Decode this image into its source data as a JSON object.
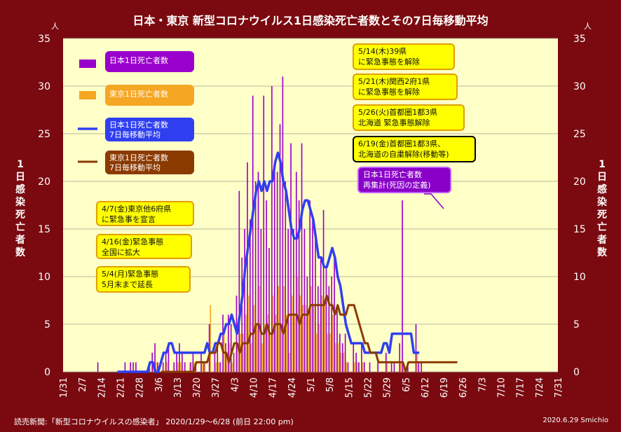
{
  "title": "日本・東京 新型コロナウイルス1日感染死亡者数とその7日毎移動平均",
  "footer": {
    "source": "読売新聞:「新型コロナウイルスの感染者」 2020/1/29〜6/28 (前日 22:00 pm)",
    "credit": "2020.6.29  Smichio"
  },
  "axis": {
    "y_unit": "人",
    "y_label": "1日感染死亡者数",
    "y_ticks": [
      0,
      5,
      10,
      15,
      20,
      25,
      30,
      35
    ],
    "ylim": [
      0,
      35
    ],
    "x_ticks": [
      "1/31",
      "2/7",
      "2/14",
      "2/21",
      "2/28",
      "3/6",
      "3/13",
      "3/20",
      "3/27",
      "4/3",
      "4/10",
      "4/17",
      "4/24",
      "5/1",
      "5/8",
      "5/15",
      "5/22",
      "5/29",
      "6/5",
      "6/12",
      "6/19",
      "6/26",
      "7/3",
      "7/10",
      "7/17",
      "7/24",
      "7/31"
    ]
  },
  "legend": [
    {
      "label": "日本1日死亡者数",
      "color": "#9a00cc"
    },
    {
      "label": "東京1日死亡者数",
      "color": "#f5a623"
    },
    {
      "label": "日本1日死亡者数\n7日毎移動平均",
      "color": "#2f3ff0"
    },
    {
      "label": "東京1日死亡者数\n7日毎移動平均",
      "color": "#8b3a00"
    }
  ],
  "annotations": [
    {
      "id": "ann-4-7",
      "text": "4/7(金)東京他6府県\nに緊急事を宣言"
    },
    {
      "id": "ann-4-16",
      "text": "4/16(金)緊急事態\n全国に拡大"
    },
    {
      "id": "ann-5-4",
      "text": "5/4(月)緊急事態\n5月末まで延長"
    },
    {
      "id": "ann-5-14",
      "text": "5/14(木)39県\nに緊急事態を解除"
    },
    {
      "id": "ann-5-21",
      "text": "5/21(木)関西2府1県\nに緊急事態を解除"
    },
    {
      "id": "ann-5-26",
      "text": "5/26(火)首都圏1都3県\n北海道 緊急事態解除"
    },
    {
      "id": "ann-6-19",
      "text": "6/19(金)首都圏1都3県、\n北海道の自粛解除(移動等)"
    },
    {
      "id": "ann-recount",
      "text": "日本1日死亡者数\n再集計(死因の定義)"
    }
  ],
  "chart_data": {
    "type": "bar",
    "x_start": "2020-01-31",
    "x_end": "2020-07-31",
    "ylim": [
      0,
      35
    ],
    "grid": true,
    "series": [
      {
        "name": "日本1日死亡者数",
        "type": "bar",
        "color": "#9a00cc",
        "start": "2020-02-13",
        "values": [
          1,
          0,
          0,
          0,
          0,
          0,
          0,
          0,
          0,
          0,
          1,
          0,
          1,
          1,
          1,
          0,
          0,
          0,
          0,
          1,
          2,
          3,
          1,
          0,
          1,
          2,
          3,
          0,
          1,
          2,
          3,
          2,
          1,
          0,
          1,
          2,
          1,
          0,
          2,
          1,
          0,
          5,
          0,
          2,
          3,
          1,
          6,
          3,
          6,
          5,
          2,
          8,
          19,
          12,
          15,
          22,
          16,
          29,
          20,
          21,
          15,
          29,
          18,
          13,
          30,
          22,
          21,
          26,
          31,
          20,
          15,
          24,
          15,
          21,
          18,
          24,
          15,
          10,
          18,
          16,
          14,
          9,
          12,
          17,
          11,
          9,
          10,
          12,
          7,
          4,
          3,
          4,
          1,
          0,
          3,
          2,
          1,
          3,
          1,
          0,
          1,
          0,
          0,
          1,
          0,
          0,
          2,
          0,
          1,
          1,
          0,
          3,
          18,
          0,
          1,
          0,
          0,
          5,
          1,
          1
        ]
      },
      {
        "name": "東京1日死亡者数",
        "type": "bar",
        "color": "#f5a623",
        "start": "2020-02-13",
        "values": [
          0,
          0,
          0,
          0,
          0,
          0,
          0,
          0,
          0,
          0,
          0,
          0,
          0,
          0,
          0,
          0,
          0,
          0,
          0,
          0,
          1,
          1,
          0,
          0,
          0,
          1,
          0,
          0,
          0,
          1,
          1,
          0,
          0,
          0,
          1,
          1,
          0,
          0,
          1,
          1,
          0,
          7,
          0,
          1,
          1,
          0,
          4,
          2,
          3,
          1,
          0,
          3,
          4,
          4,
          6,
          8,
          3,
          7,
          5,
          9,
          3,
          5,
          6,
          4,
          8,
          6,
          9,
          5,
          9,
          6,
          2,
          8,
          6,
          10,
          8,
          7,
          7,
          6,
          9,
          7,
          4,
          5,
          8,
          7,
          4,
          4,
          6,
          3,
          3,
          2,
          2,
          1,
          0,
          0,
          1,
          1,
          0,
          1,
          0,
          0,
          0,
          0,
          0,
          0,
          0,
          0,
          1,
          0,
          0,
          0,
          0,
          1,
          1,
          0,
          0,
          0,
          0,
          2,
          0,
          0
        ]
      },
      {
        "name": "日本1日死亡者数\n7日毎移動平均",
        "type": "line",
        "color": "#2f3ff0",
        "start": "2020-02-20",
        "values": [
          0,
          0,
          0,
          0,
          0,
          0,
          0,
          0,
          0,
          0,
          0,
          0,
          1,
          1,
          0,
          0,
          1,
          2,
          2,
          3,
          3,
          2,
          2,
          2,
          2,
          2,
          2,
          2,
          2,
          2,
          2,
          2,
          2,
          3,
          2,
          2,
          3,
          3,
          4,
          4,
          5,
          5,
          6,
          5,
          4,
          6,
          8,
          11,
          13,
          15,
          17,
          19,
          20,
          19,
          20,
          19,
          20,
          20,
          22,
          23,
          22,
          20,
          19,
          17,
          15,
          14,
          14,
          15,
          17,
          18,
          18,
          17,
          16,
          14,
          12,
          12,
          11,
          11,
          12,
          13,
          12,
          10,
          9,
          7,
          5,
          4,
          3,
          3,
          3,
          3,
          3,
          2,
          2,
          2,
          2,
          2,
          2,
          2,
          3,
          3,
          2,
          4,
          4,
          4,
          4,
          4,
          4,
          4,
          4,
          2,
          2,
          2
        ]
      },
      {
        "name": "東京1日死亡者数\n7日毎移動平均",
        "type": "line",
        "color": "#8b3a00",
        "start": "2020-03-07",
        "values": [
          0,
          0,
          0,
          0,
          0,
          0,
          0,
          0,
          0,
          0,
          0,
          0,
          0,
          1,
          1,
          1,
          1,
          1,
          2,
          2,
          2,
          3,
          3,
          2,
          2,
          1,
          2,
          3,
          3,
          2,
          3,
          3,
          3,
          4,
          4,
          5,
          5,
          4,
          4,
          5,
          4,
          4,
          5,
          5,
          5,
          4,
          5,
          6,
          6,
          6,
          6,
          5,
          6,
          6,
          6,
          7,
          7,
          7,
          7,
          7,
          7,
          8,
          7,
          7,
          6,
          7,
          6,
          6,
          6,
          7,
          7,
          7,
          6,
          5,
          4,
          3,
          3,
          2,
          2,
          2,
          1,
          1,
          1,
          1,
          1,
          1,
          1,
          1,
          1,
          1,
          0,
          1,
          1,
          1,
          1,
          1,
          1,
          1,
          1,
          1,
          1,
          1,
          1,
          1,
          1,
          1,
          1,
          1,
          1,
          1
        ]
      }
    ]
  }
}
